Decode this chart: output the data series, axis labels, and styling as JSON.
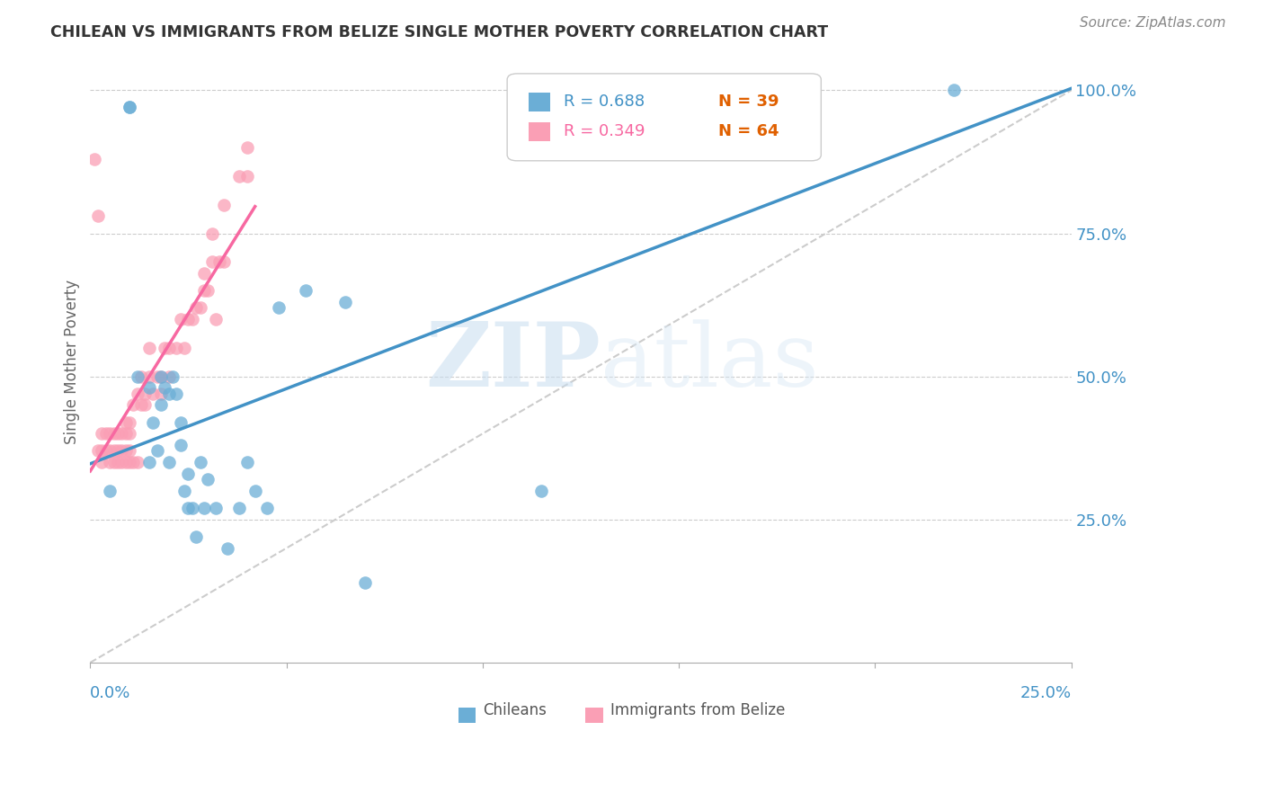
{
  "title": "CHILEAN VS IMMIGRANTS FROM BELIZE SINGLE MOTHER POVERTY CORRELATION CHART",
  "source": "Source: ZipAtlas.com",
  "ylabel": "Single Mother Poverty",
  "ytick_labels": [
    "100.0%",
    "75.0%",
    "50.0%",
    "25.0%"
  ],
  "ytick_values": [
    1.0,
    0.75,
    0.5,
    0.25
  ],
  "xlim": [
    0.0,
    0.25
  ],
  "ylim": [
    0.0,
    1.05
  ],
  "blue_color": "#6baed6",
  "pink_color": "#fa9fb5",
  "blue_line_color": "#4292c6",
  "pink_line_color": "#f768a1",
  "diagonal_color": "#cccccc",
  "grid_color": "#cccccc",
  "axis_label_color": "#4292c6",
  "title_color": "#333333",
  "watermark_zip": "ZIP",
  "watermark_atlas": "atlas",
  "leg_r1": "R = 0.688",
  "leg_n1": "N = 39",
  "leg_r2": "R = 0.349",
  "leg_n2": "N = 64",
  "n_orange_color": "#e06000"
}
